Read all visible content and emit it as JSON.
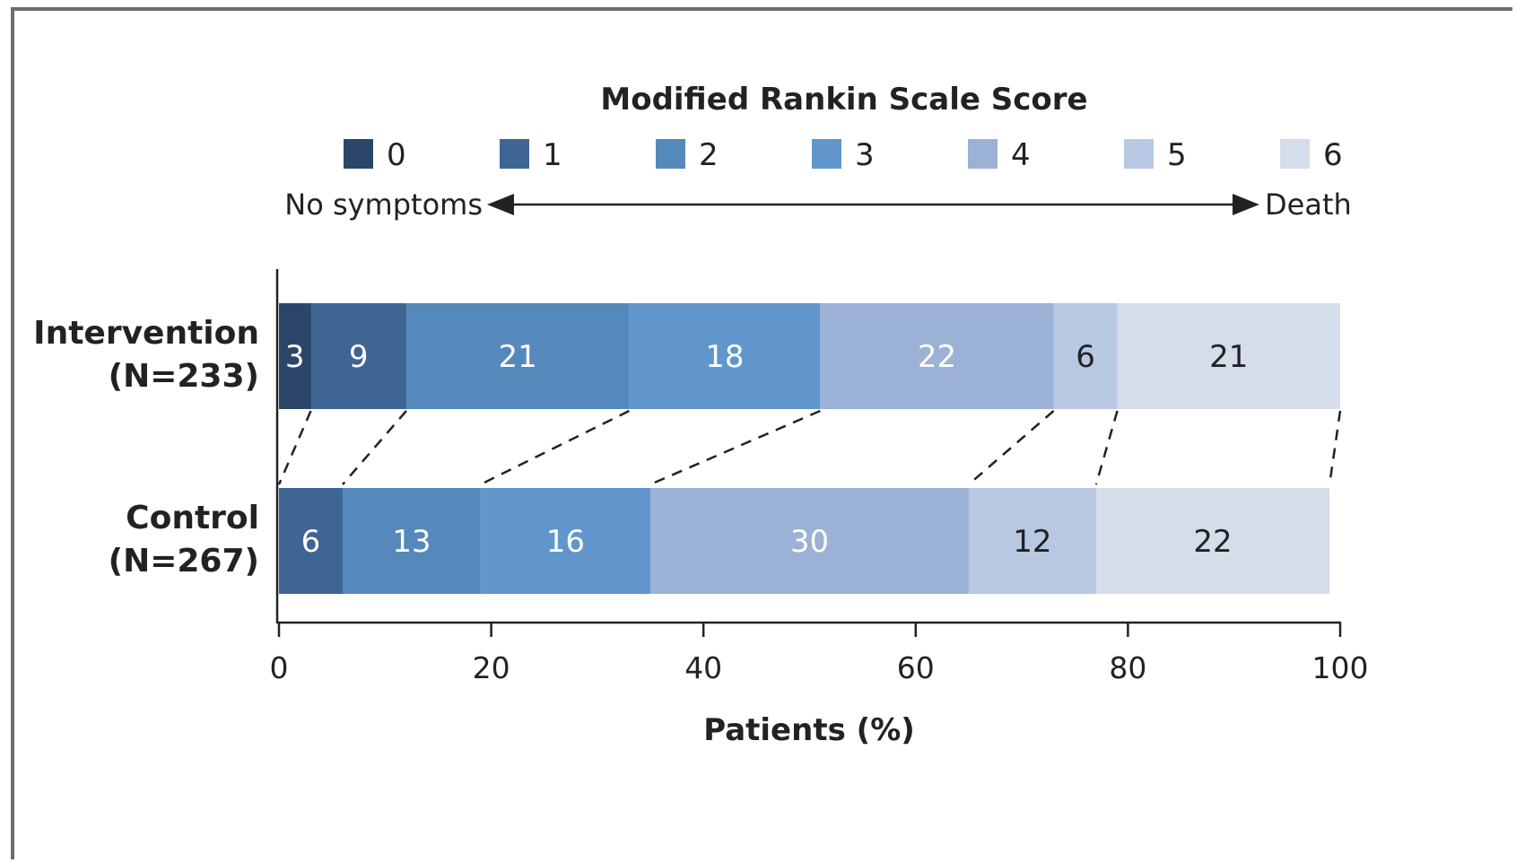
{
  "chart_data": {
    "type": "bar",
    "orientation": "horizontal",
    "stacked": true,
    "legend_title": "Modified Rankin Scale Score",
    "legend_position": "top",
    "scale_left_label": "No symptoms",
    "scale_right_label": "Death",
    "categories": [
      {
        "label": "Intervention",
        "sublabel": "(N=233)"
      },
      {
        "label": "Control",
        "sublabel": "(N=267)"
      }
    ],
    "series": [
      {
        "name": "0",
        "color": "#2c4669",
        "values": [
          3,
          0
        ],
        "labels": [
          "3",
          ""
        ],
        "label_color": "#ffffff"
      },
      {
        "name": "1",
        "color": "#3f6594",
        "values": [
          9,
          6
        ],
        "labels": [
          "9",
          "6"
        ],
        "label_color": "#ffffff"
      },
      {
        "name": "2",
        "color": "#5588bb",
        "values": [
          21,
          13
        ],
        "labels": [
          "21",
          "13"
        ],
        "label_color": "#ffffff"
      },
      {
        "name": "3",
        "color": "#6096cb",
        "values": [
          18,
          16
        ],
        "labels": [
          "18",
          "16"
        ],
        "label_color": "#ffffff"
      },
      {
        "name": "4",
        "color": "#9bb1d5",
        "values": [
          22,
          30
        ],
        "labels": [
          "22",
          "30"
        ],
        "label_color": "#ffffff"
      },
      {
        "name": "5",
        "color": "#b9c8e2",
        "values": [
          6,
          12
        ],
        "labels": [
          "6",
          "12"
        ],
        "label_color": "#222222"
      },
      {
        "name": "6",
        "color": "#d5ddeb",
        "values": [
          21,
          22
        ],
        "labels": [
          "21",
          "22"
        ],
        "label_color": "#222222"
      }
    ],
    "xlabel": "Patients (%)",
    "xlim": [
      0,
      100
    ],
    "xticks": [
      "0",
      "20",
      "40",
      "60",
      "80",
      "100"
    ],
    "connector_lines": "dashed"
  }
}
